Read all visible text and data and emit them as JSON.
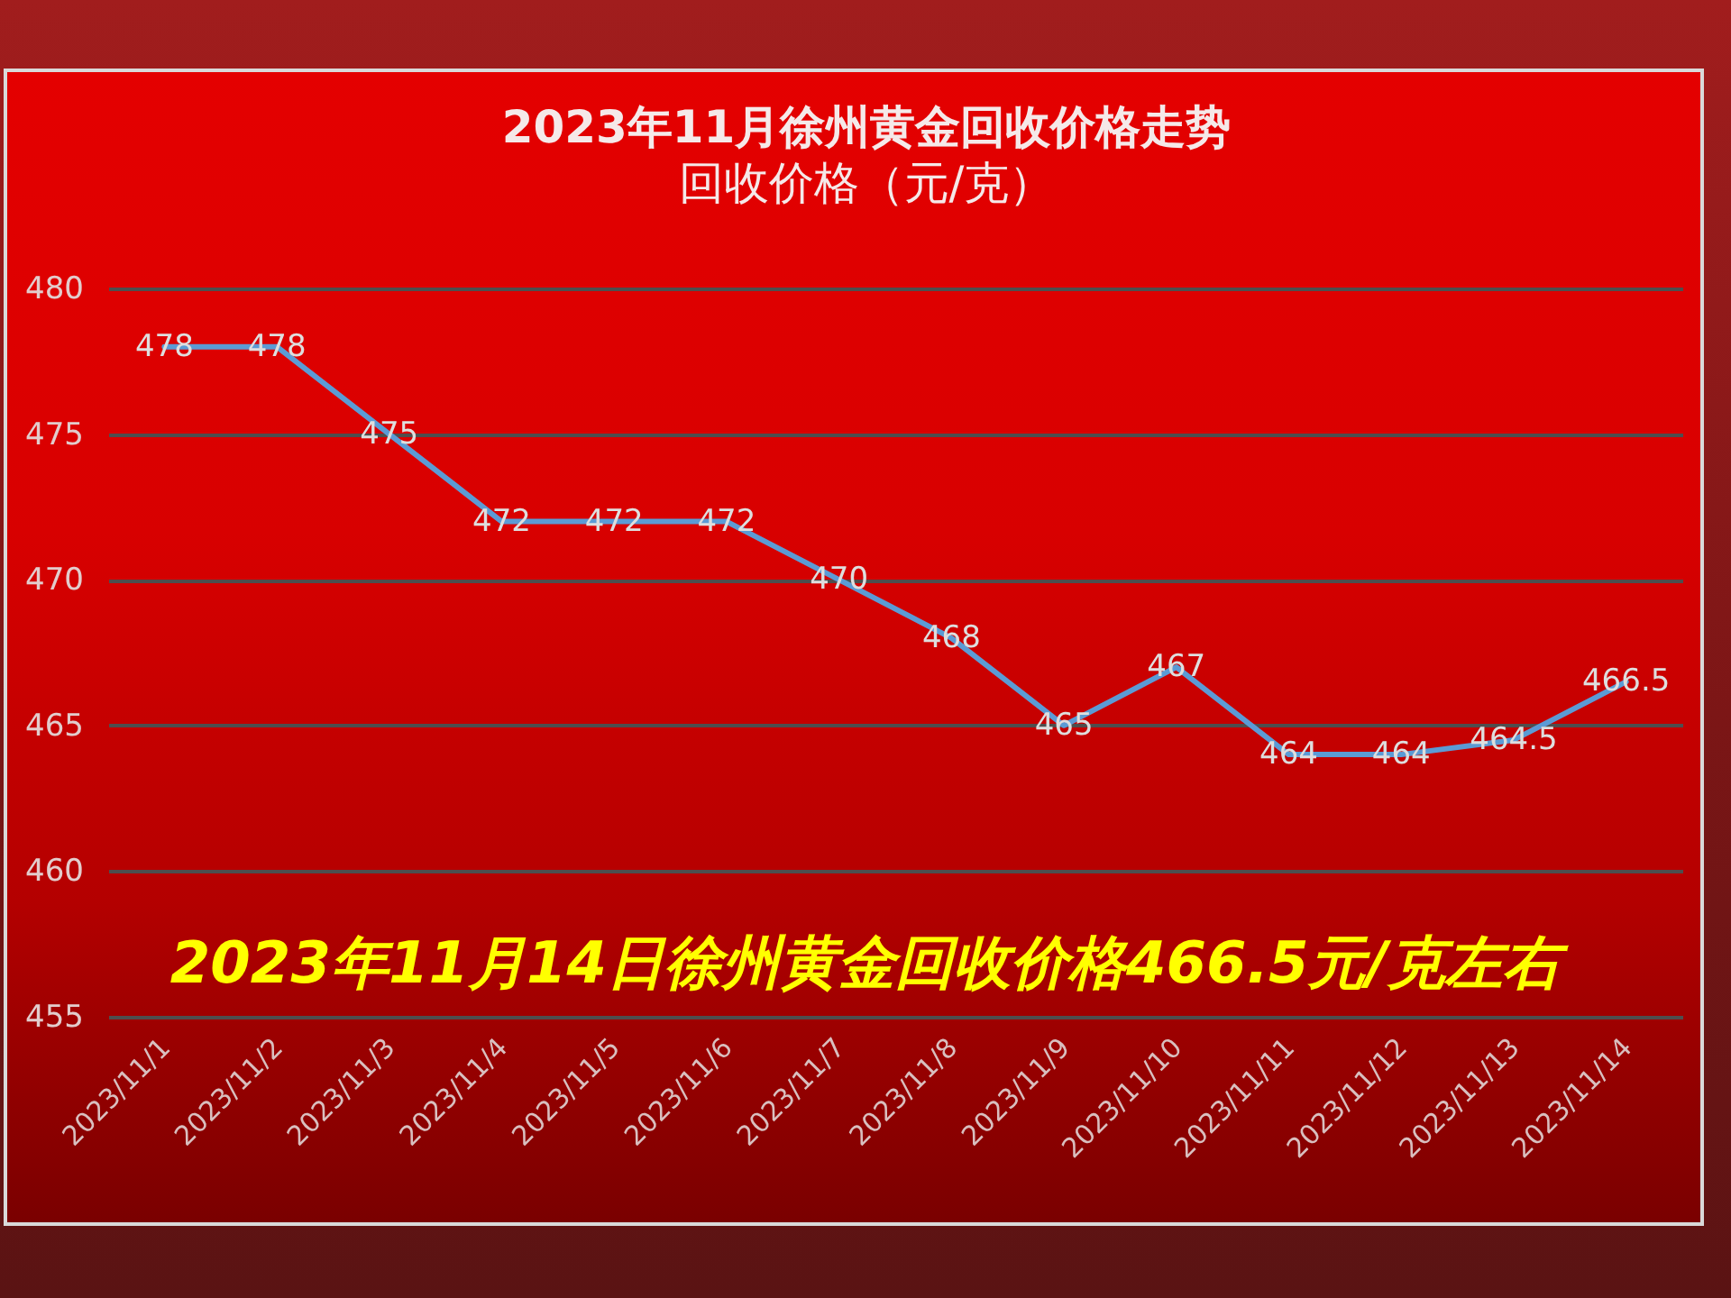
{
  "chart_data": {
    "type": "line",
    "title": "2023年11月徐州黄金回收价格走势",
    "subtitle": "回收价格（元/克）",
    "categories": [
      "2023/11/1",
      "2023/11/2",
      "2023/11/3",
      "2023/11/4",
      "2023/11/5",
      "2023/11/6",
      "2023/11/7",
      "2023/11/8",
      "2023/11/9",
      "2023/11/10",
      "2023/11/11",
      "2023/11/12",
      "2023/11/13",
      "2023/11/14"
    ],
    "series": [
      {
        "color": "#5b9bd5",
        "values": [
          478,
          478,
          475,
          472,
          472,
          472,
          470,
          468,
          465,
          467,
          464,
          464,
          464.5,
          466.5
        ]
      }
    ],
    "ylim": [
      455,
      480
    ],
    "yticks": [
      455,
      460,
      465,
      470,
      475,
      480
    ],
    "grid": "y",
    "data_labels": true,
    "line_style": "solid",
    "annotations": [
      "2023年11月14日徐州黄金回收价格466.5元/克左右"
    ]
  }
}
